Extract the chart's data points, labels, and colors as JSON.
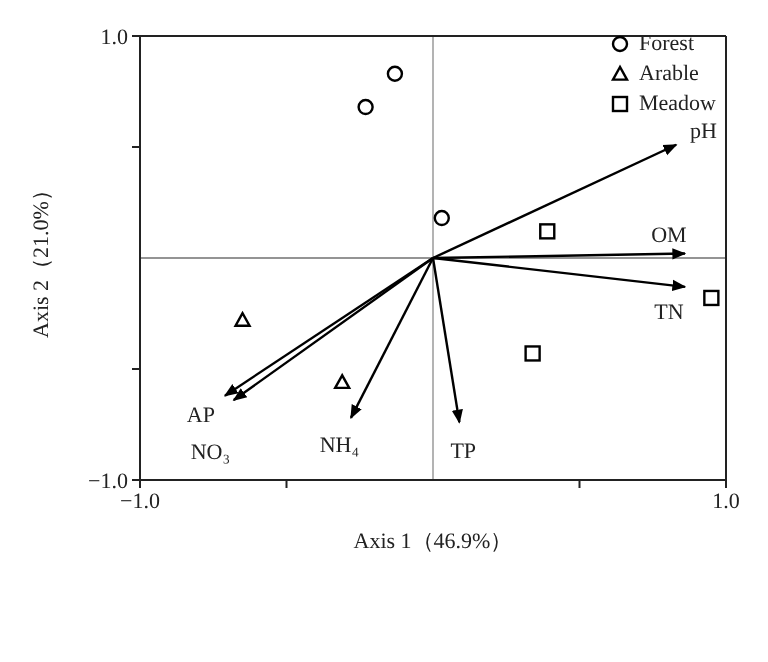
{
  "chart_data": {
    "type": "scatter",
    "xlabel": "Axis 1（46.9%）",
    "ylabel": "Axis 2（21.0%）",
    "xlim": [
      -1,
      1
    ],
    "ylim": [
      -1,
      1
    ],
    "xticks": [
      {
        "value": -1,
        "label": "−1.0"
      },
      {
        "value": -0.5,
        "label": null
      },
      {
        "value": 0.5,
        "label": null
      },
      {
        "value": 1,
        "label": "1.0"
      }
    ],
    "yticks": [
      {
        "value": -1,
        "label": "−1.0"
      },
      {
        "value": -0.5,
        "label": null
      },
      {
        "value": 0.5,
        "label": null
      },
      {
        "value": 1,
        "label": "1.0"
      }
    ],
    "legend": "top right",
    "ref_lines": [
      {
        "axis": "x",
        "value": 0,
        "color": "#a0a0a0"
      },
      {
        "axis": "y",
        "value": 0,
        "color": "#707070"
      }
    ],
    "series": [
      {
        "name": "Forest",
        "marker": "circle",
        "color": "#000000",
        "x": [
          -0.13,
          -0.23,
          0.03
        ],
        "values": [
          0.83,
          0.68,
          0.18
        ]
      },
      {
        "name": "Arable",
        "marker": "triangle",
        "color": "#000000",
        "x": [
          -0.65,
          -0.31
        ],
        "values": [
          -0.28,
          -0.56
        ]
      },
      {
        "name": "Meadow",
        "marker": "square",
        "color": "#000000",
        "x": [
          0.39,
          0.34,
          0.95
        ],
        "values": [
          0.12,
          -0.43,
          -0.18
        ]
      },
      {
        "name": "pH",
        "type": "line",
        "color": "#000000",
        "x": [
          0,
          0.83
        ],
        "values": [
          0,
          0.51
        ]
      },
      {
        "name": "OM",
        "type": "line",
        "color": "#000000",
        "x": [
          0,
          0.86
        ],
        "values": [
          0,
          0.02
        ]
      },
      {
        "name": "TN",
        "type": "line",
        "color": "#000000",
        "x": [
          0,
          0.86
        ],
        "values": [
          0,
          -0.13
        ]
      },
      {
        "name": "AP",
        "type": "line",
        "color": "#000000",
        "x": [
          0,
          -0.71
        ],
        "values": [
          0,
          -0.62
        ]
      },
      {
        "name": "NO₃",
        "type": "line",
        "color": "#000000",
        "x": [
          0,
          -0.68
        ],
        "values": [
          0,
          -0.64
        ]
      },
      {
        "name": "NH₄",
        "type": "line",
        "color": "#000000",
        "x": [
          0,
          -0.28
        ],
        "values": [
          0,
          -0.72
        ]
      },
      {
        "name": "TP",
        "type": "line",
        "color": "#000000",
        "x": [
          0,
          0.09
        ],
        "values": [
          0,
          -0.74
        ]
      }
    ]
  }
}
